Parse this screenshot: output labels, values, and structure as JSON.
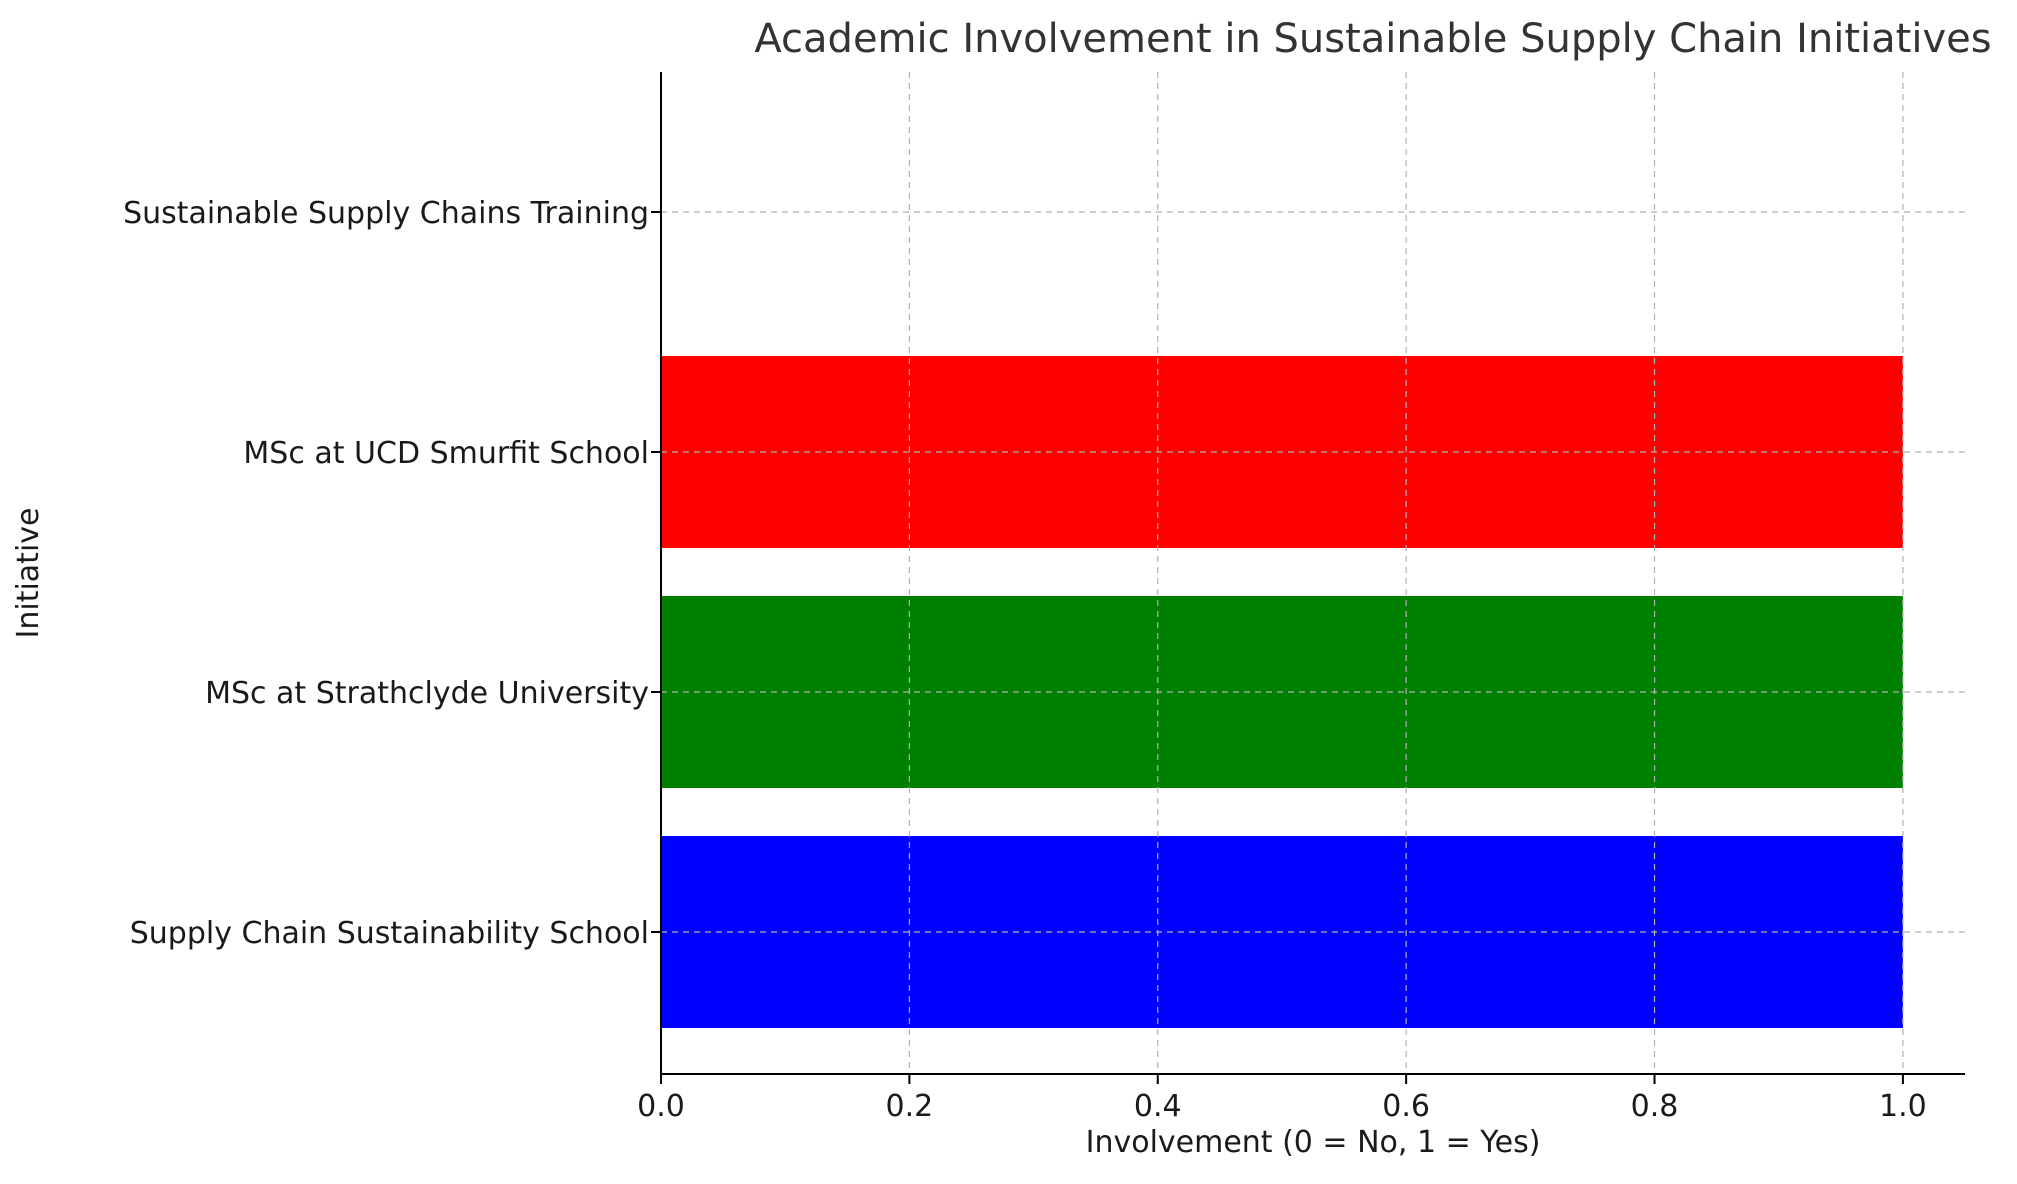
{
  "chart_data": {
    "type": "bar",
    "orientation": "horizontal",
    "title": "Academic Involvement in Sustainable Supply Chain Initiatives",
    "xlabel": "Involvement (0 = No, 1 = Yes)",
    "ylabel": "Initiative",
    "categories": [
      "Supply Chain Sustainability School",
      "MSc at Strathclyde University",
      "MSc at UCD Smurfit School",
      "Sustainable Supply Chains Training"
    ],
    "values": [
      1,
      1,
      1,
      0
    ],
    "colors": [
      "#0000ff",
      "#008000",
      "#ff0000",
      "#ffffff"
    ],
    "xlim": [
      0,
      1.05
    ],
    "xticks": [
      "0.0",
      "0.2",
      "0.4",
      "0.6",
      "0.8",
      "1.0"
    ],
    "grid": true
  }
}
